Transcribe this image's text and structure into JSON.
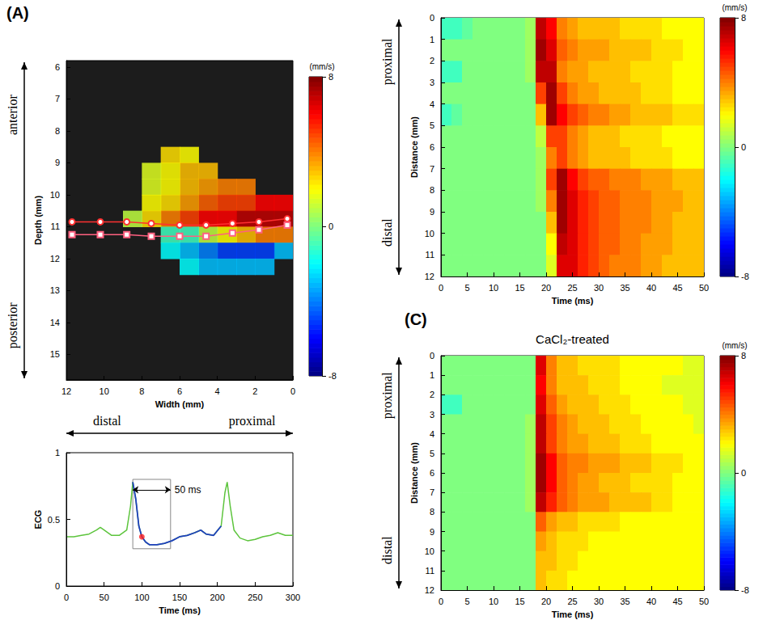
{
  "chart_data": [
    {
      "type": "heatmap",
      "panel": "(A)",
      "xlabel": "Width (mm)",
      "ylabel": "Depth (mm)",
      "xlim": [
        12,
        0
      ],
      "xticks": [
        12,
        10,
        8,
        6,
        4,
        2,
        0
      ],
      "ylim": [
        15.8,
        5.8
      ],
      "yticks": [
        6,
        7,
        8,
        9,
        10,
        11,
        12,
        13,
        14,
        15
      ],
      "x_axis_ends": [
        "distal",
        "proximal"
      ],
      "y_axis_ends": [
        "anterior",
        "posterior"
      ],
      "grid": false,
      "cells": {
        "x_edges": [
          0,
          1,
          2,
          3,
          4,
          5,
          6,
          7,
          8,
          9
        ],
        "y_edges": [
          8.5,
          9,
          9.5,
          10,
          10.5,
          11,
          11.5,
          12,
          12.5
        ],
        "values": [
          [
            null,
            null,
            null,
            null,
            null,
            2,
            2.5,
            null,
            null
          ],
          [
            null,
            null,
            null,
            null,
            3,
            3,
            2,
            1.5,
            null
          ],
          [
            null,
            null,
            4,
            4,
            3.5,
            3,
            2,
            1.5,
            null
          ],
          [
            6,
            6,
            5,
            5,
            4.5,
            3.5,
            2.5,
            2,
            null
          ],
          [
            7,
            7,
            7,
            6,
            6,
            5,
            4,
            2.5,
            1
          ],
          [
            4,
            4,
            3,
            2,
            1,
            -1,
            -1,
            null,
            null
          ],
          [
            -3,
            -5,
            -5,
            -5,
            -4,
            -3,
            -2,
            null,
            null
          ],
          [
            null,
            -3,
            -3,
            -3,
            -3,
            -2,
            null,
            null,
            null
          ]
        ]
      },
      "colorbar": {
        "range": [
          -8,
          8
        ],
        "ticks": [
          -8,
          0,
          8
        ],
        "label": "(mm/s)"
      },
      "series": [
        {
          "x": [
            11.7,
            10.2,
            8.8,
            7.5,
            6,
            4.6,
            3.2,
            1.8,
            0.3
          ],
          "values": [
            10.85,
            10.85,
            10.85,
            10.9,
            10.95,
            10.95,
            10.9,
            10.85,
            10.75
          ],
          "color": "#ff3030",
          "marker": "circle"
        },
        {
          "x": [
            11.7,
            10.2,
            8.8,
            7.5,
            6,
            4.6,
            3.2,
            1.8,
            0.3
          ],
          "values": [
            11.25,
            11.25,
            11.25,
            11.3,
            11.3,
            11.3,
            11.2,
            11.1,
            10.95
          ],
          "color": "#ff6080",
          "marker": "square"
        }
      ]
    },
    {
      "type": "line",
      "xlabel": "Time (ms)",
      "ylabel": "ECG",
      "xlim": [
        0,
        300
      ],
      "xticks": [
        0,
        50,
        100,
        150,
        200,
        250,
        300
      ],
      "ylim": [
        0,
        1
      ],
      "yticks": [
        0,
        0.5,
        1
      ],
      "grid": false,
      "x": [
        0,
        10,
        20,
        30,
        40,
        45,
        50,
        60,
        70,
        80,
        85,
        88,
        92,
        96,
        100,
        105,
        110,
        120,
        130,
        140,
        150,
        160,
        170,
        178,
        185,
        195,
        205,
        210,
        213,
        217,
        222,
        230,
        240,
        250,
        260,
        270,
        280,
        290,
        300
      ],
      "values": [
        0.37,
        0.37,
        0.38,
        0.39,
        0.42,
        0.44,
        0.42,
        0.38,
        0.38,
        0.42,
        0.6,
        0.78,
        0.65,
        0.45,
        0.37,
        0.33,
        0.31,
        0.31,
        0.32,
        0.34,
        0.37,
        0.38,
        0.4,
        0.42,
        0.39,
        0.38,
        0.45,
        0.7,
        0.78,
        0.6,
        0.42,
        0.36,
        0.34,
        0.35,
        0.37,
        0.38,
        0.4,
        0.38,
        0.38
      ],
      "color": "#5cc43c",
      "highlight": {
        "range": [
          88,
          205
        ],
        "color": "#1f3fbf"
      },
      "window": {
        "x": [
          88,
          138
        ],
        "y": [
          0.28,
          0.8
        ],
        "label": "50 ms"
      },
      "point": {
        "x": 100,
        "y": 0.37,
        "color": "#ff2020"
      }
    },
    {
      "type": "heatmap",
      "xlabel": "Time (ms)",
      "ylabel": "Distance (mm)",
      "xlim": [
        0,
        50
      ],
      "xticks": [
        0,
        5,
        10,
        15,
        20,
        25,
        30,
        35,
        40,
        45,
        50
      ],
      "ylim": [
        12,
        0
      ],
      "yticks": [
        0,
        1,
        2,
        3,
        4,
        5,
        6,
        7,
        8,
        9,
        10,
        11,
        12
      ],
      "y_axis_ends": [
        "proximal",
        "distal"
      ],
      "grid": false,
      "cells": {
        "x_edges": [
          0,
          2,
          4,
          6,
          8,
          10,
          12,
          14,
          16,
          18,
          20,
          22,
          24,
          26,
          28,
          30,
          32,
          34,
          36,
          38,
          40,
          42,
          44,
          46,
          48,
          50
        ],
        "y_edges": [
          0,
          1,
          2,
          3,
          4,
          5,
          6,
          7,
          8,
          9,
          10,
          11,
          12
        ],
        "values": [
          [
            -1,
            -1,
            -0.5,
            0,
            0,
            0,
            0,
            0,
            0.5,
            7,
            6,
            4,
            3.5,
            3,
            3,
            3,
            3,
            2.5,
            2.5,
            2.5,
            2.5,
            2,
            2,
            2,
            2
          ],
          [
            0,
            0,
            0,
            0,
            0,
            0,
            0,
            0,
            0.5,
            7.5,
            6.5,
            4.5,
            4,
            3.5,
            3.5,
            3.5,
            3,
            3,
            3,
            3,
            2.5,
            2.5,
            2.5,
            2,
            2
          ],
          [
            -1,
            -1,
            0,
            0,
            0,
            0,
            0,
            0,
            0.5,
            7,
            7,
            4,
            3.5,
            3.5,
            3,
            3,
            3,
            3,
            2.5,
            2.5,
            2.5,
            2.5,
            2,
            2,
            2
          ],
          [
            0,
            0,
            0,
            0,
            0,
            0,
            0,
            0,
            0,
            5,
            7.5,
            5,
            4,
            3.5,
            3.5,
            3,
            3,
            3,
            3,
            2.5,
            2.5,
            2.5,
            2,
            2,
            2
          ],
          [
            -1,
            -0.5,
            0,
            0,
            0,
            0,
            0,
            0,
            0,
            3,
            7.5,
            6,
            5,
            4.5,
            4,
            4,
            3.5,
            3.5,
            3,
            3,
            3,
            3,
            2.5,
            2.5,
            2.5
          ],
          [
            0,
            0,
            0,
            0,
            0,
            0,
            0,
            0,
            0,
            1,
            5,
            5,
            4,
            3.5,
            3,
            3,
            3,
            2.5,
            2.5,
            2.5,
            2.5,
            2,
            2,
            2,
            2
          ],
          [
            0,
            0,
            0,
            0,
            0,
            0,
            0,
            0,
            0,
            0.5,
            4,
            5,
            4,
            3.5,
            3,
            3,
            3,
            3,
            2.5,
            2.5,
            2.5,
            2.5,
            2,
            2,
            2
          ],
          [
            0,
            0,
            0,
            0,
            0,
            0,
            0,
            0,
            0,
            0.5,
            5,
            7.5,
            6,
            5,
            4.5,
            4.5,
            4,
            4,
            4,
            3.5,
            3.5,
            3.5,
            3,
            3,
            3
          ],
          [
            0,
            0,
            0,
            0,
            0,
            0,
            0,
            0,
            0,
            0.5,
            4,
            7.5,
            6.5,
            5.5,
            5,
            4.5,
            4.5,
            4,
            4,
            4,
            3.5,
            3.5,
            3.5,
            3,
            3
          ],
          [
            0,
            0,
            0,
            0,
            0,
            0,
            0,
            0,
            0,
            0,
            3,
            7.5,
            6.5,
            5.5,
            5,
            4.5,
            4.5,
            4,
            4,
            4,
            3.5,
            3.5,
            3,
            3,
            3
          ],
          [
            0,
            0,
            0,
            0,
            0,
            0,
            0,
            0,
            0,
            0,
            2,
            7,
            6.5,
            5.5,
            5,
            4.5,
            4.5,
            4,
            4,
            3.5,
            3.5,
            3.5,
            3,
            3,
            3
          ],
          [
            0,
            0,
            0,
            0,
            0,
            0,
            0,
            0,
            0,
            0,
            1.5,
            6.5,
            6.5,
            5.5,
            5,
            4.5,
            4,
            4,
            4,
            3.5,
            3.5,
            3,
            3,
            3,
            3
          ]
        ]
      },
      "colorbar": {
        "range": [
          -8,
          8
        ],
        "ticks": [
          -8,
          0,
          8
        ],
        "label": "(mm/s)"
      }
    },
    {
      "type": "heatmap",
      "panel": "(C)",
      "title": "CaCl₂-treated",
      "xlabel": "Time (ms)",
      "ylabel": "Distance (mm)",
      "xlim": [
        0,
        50
      ],
      "xticks": [
        0,
        5,
        10,
        15,
        20,
        25,
        30,
        35,
        40,
        45,
        50
      ],
      "ylim": [
        12,
        0
      ],
      "yticks": [
        0,
        1,
        2,
        3,
        4,
        5,
        6,
        7,
        8,
        9,
        10,
        11,
        12
      ],
      "y_axis_ends": [
        "proximal",
        "distal"
      ],
      "grid": false,
      "cells": {
        "x_edges": [
          0,
          2,
          4,
          6,
          8,
          10,
          12,
          14,
          16,
          18,
          20,
          22,
          24,
          26,
          28,
          30,
          32,
          34,
          36,
          38,
          40,
          42,
          44,
          46,
          48,
          50
        ],
        "y_edges": [
          0,
          1,
          2,
          3,
          4,
          5,
          6,
          7,
          8,
          9,
          10,
          11,
          12
        ],
        "values": [
          [
            0,
            0,
            0,
            0,
            0,
            0,
            0,
            0,
            0,
            6.5,
            4,
            3,
            3,
            2.5,
            2.5,
            2.5,
            2.5,
            2,
            2,
            2,
            2,
            2,
            2,
            1.5,
            1.5
          ],
          [
            0,
            0,
            0,
            0,
            0,
            0,
            0,
            0,
            0,
            6,
            4,
            3,
            3,
            3,
            2.5,
            2.5,
            2.5,
            2,
            2,
            2,
            2,
            1.5,
            1.5,
            1.5,
            1.5
          ],
          [
            -1,
            -1,
            0,
            0,
            0,
            0,
            0,
            0,
            0,
            6.5,
            4.5,
            3.5,
            3,
            3,
            3,
            2.5,
            2.5,
            2.5,
            2,
            2,
            2,
            2,
            2,
            1.5,
            1.5
          ],
          [
            0,
            0,
            0,
            0,
            0,
            0,
            0,
            0,
            0.5,
            7,
            5,
            4,
            3.5,
            3,
            3,
            3,
            2.5,
            2.5,
            2.5,
            2,
            2,
            2,
            2,
            2,
            1.5
          ],
          [
            0,
            0,
            0,
            0,
            0,
            0,
            0,
            0,
            0.5,
            7,
            5,
            4,
            3.5,
            3.5,
            3,
            3,
            3,
            2.5,
            2.5,
            2.5,
            2,
            2,
            2,
            2,
            2
          ],
          [
            0,
            0,
            0,
            0,
            0,
            0,
            0,
            0,
            0.5,
            7.5,
            6,
            4.5,
            4,
            4,
            3.5,
            3.5,
            3.5,
            3,
            3,
            3,
            2.5,
            2.5,
            2.5,
            2,
            2
          ],
          [
            0,
            0,
            0,
            0,
            0,
            0,
            0,
            0,
            0.5,
            7.5,
            6,
            4.5,
            4,
            3.5,
            3.5,
            3,
            3,
            3,
            2.5,
            2.5,
            2.5,
            2.5,
            2,
            2,
            2
          ],
          [
            0,
            0,
            0,
            0,
            0,
            0,
            0,
            0,
            0.5,
            7,
            5.5,
            4.5,
            4,
            3.5,
            3.5,
            3.5,
            3,
            3,
            3,
            3,
            2.5,
            2.5,
            2,
            2,
            2
          ],
          [
            0,
            0,
            0,
            0,
            0,
            0,
            0,
            0,
            0,
            4.5,
            3.5,
            3,
            3,
            2.5,
            2.5,
            2.5,
            2.5,
            2,
            2,
            2,
            2,
            2,
            2,
            2,
            2
          ],
          [
            0,
            0,
            0,
            0,
            0,
            0,
            0,
            0,
            0,
            3.5,
            3,
            2.5,
            2.5,
            2.5,
            2,
            2,
            2,
            2,
            2,
            2,
            2,
            2,
            2,
            2,
            2
          ],
          [
            0,
            0,
            0,
            0,
            0,
            0,
            0,
            0,
            0,
            3,
            3,
            2.5,
            2.5,
            2,
            2,
            2,
            2,
            2,
            2,
            2,
            2,
            2,
            2,
            2,
            2
          ],
          [
            0,
            0,
            0,
            0,
            0,
            0,
            0,
            0,
            0,
            3,
            2.5,
            2.5,
            2,
            2,
            2,
            2,
            2,
            2,
            2,
            2,
            2,
            2,
            2,
            2,
            2
          ]
        ]
      },
      "colorbar": {
        "range": [
          -8,
          8
        ],
        "ticks": [
          -8,
          0,
          8
        ],
        "label": "(mm/s)"
      }
    }
  ]
}
